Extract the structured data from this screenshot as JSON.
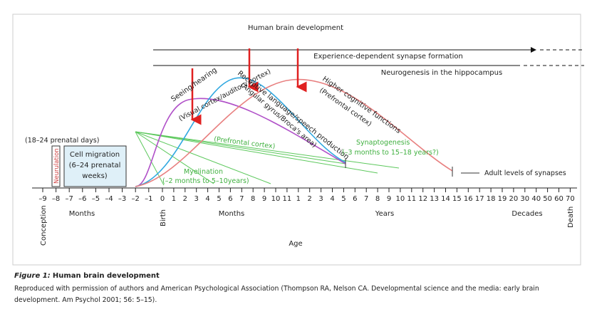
{
  "title": "Human brain development",
  "bands": [
    {
      "label": "Experience-dependent synapse formation"
    },
    {
      "label": "Neurogenesis in the hippocampus"
    }
  ],
  "prenatal": {
    "neurulation": "Neurulation",
    "neurulation_time": "(18–24 prenatal days)",
    "cell_migration": [
      "Cell migration",
      "(6–24 prenatal",
      "weeks)"
    ]
  },
  "curves": [
    {
      "lines": [
        "Seeing/hearing",
        "(Visual cortex/auditory cortex)"
      ]
    },
    {
      "lines": [
        "Receptive language/speech production",
        "(Angular gyrus/Broca's area)"
      ]
    },
    {
      "lines": [
        "Higher cognitive functions",
        "(Prefrontal cortex)"
      ]
    }
  ],
  "synaptogenesis": [
    "Synaptogenesis",
    "(–3 months to 15–18 years?)"
  ],
  "prefrontal": "(Prefrontal cortex)",
  "myelination": [
    "Myelination",
    "(–2 months to 5–10years)"
  ],
  "adult": "Adult levels of synapses",
  "axis": {
    "ticks": [
      "–9",
      "–8",
      "–7",
      "–6",
      "–5",
      "–4",
      "–3",
      "–2",
      "–1",
      "0",
      "1",
      "2",
      "3",
      "4",
      "5",
      "6",
      "7",
      "8",
      "9",
      "10",
      "11",
      "1",
      "2",
      "3",
      "4",
      "5",
      "6",
      "7",
      "8",
      "9",
      "10",
      "11",
      "12",
      "13",
      "14",
      "15",
      "16",
      "17",
      "18",
      "19",
      "20",
      "30",
      "40",
      "50",
      "60",
      "70"
    ],
    "labels": [
      "Conception",
      "Months",
      "Birth",
      "Months",
      "Years",
      "Decades",
      "Death"
    ],
    "title": "Age"
  },
  "caption": {
    "label": "Figure 1:",
    "title": "Human brain development",
    "line1": "Reproduced with permission of authors and American Psychological Association (Thompson RA, Nelson CA. Developmental science and the media: early brain",
    "line2": "development. Am Psychol 2001; 56: 5–15)."
  }
}
